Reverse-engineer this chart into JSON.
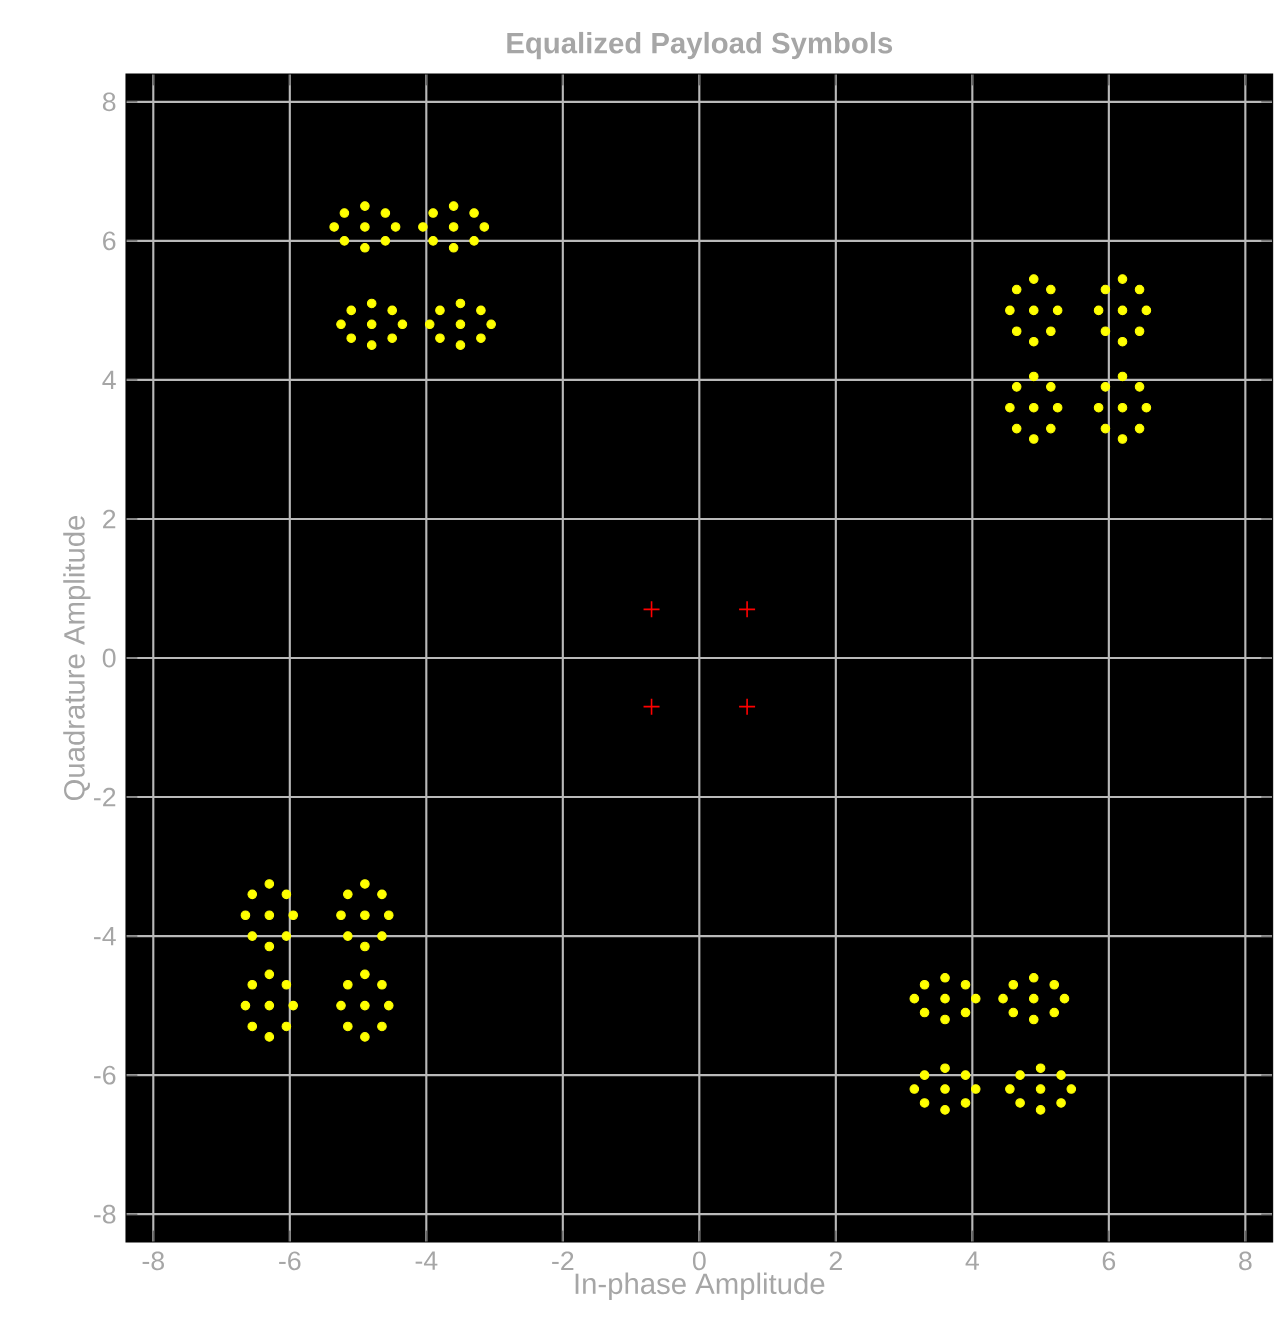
{
  "chart_data": {
    "type": "scatter",
    "title": "Equalized Payload Symbols",
    "xlabel": "In-phase Amplitude",
    "ylabel": "Quadrature Amplitude",
    "xlim": [
      -8.4,
      8.4
    ],
    "ylim": [
      -8.4,
      8.4
    ],
    "xticks": [
      -8,
      -6,
      -4,
      -2,
      0,
      2,
      4,
      6,
      8
    ],
    "yticks": [
      -8,
      -6,
      -4,
      -2,
      0,
      2,
      4,
      6,
      8
    ],
    "grid": true,
    "series": [
      {
        "color": "#ffff00",
        "marker": "circle",
        "x": [
          -4.9,
          -5.35,
          -4.45,
          -4.9,
          -4.9,
          -5.2,
          -4.6,
          -5.2,
          -4.6,
          -3.6,
          -4.05,
          -3.15,
          -3.6,
          -3.6,
          -3.9,
          -3.3,
          -3.9,
          -3.3,
          -4.8,
          -5.25,
          -4.35,
          -4.8,
          -4.8,
          -5.1,
          -4.5,
          -5.1,
          -4.5,
          -3.5,
          -3.95,
          -3.05,
          -3.5,
          -3.5,
          -3.8,
          -3.2,
          -3.8,
          -3.2,
          4.9,
          4.55,
          5.25,
          4.9,
          4.9,
          4.65,
          5.15,
          4.65,
          5.15,
          6.2,
          5.85,
          6.55,
          6.2,
          6.2,
          5.95,
          6.45,
          5.95,
          6.45,
          4.9,
          4.55,
          5.25,
          4.9,
          4.9,
          4.65,
          5.15,
          4.65,
          5.15,
          6.2,
          5.85,
          6.55,
          6.2,
          6.2,
          5.95,
          6.45,
          5.95,
          6.45,
          -6.3,
          -6.65,
          -5.95,
          -6.3,
          -6.3,
          -6.55,
          -6.05,
          -6.55,
          -6.05,
          -4.9,
          -5.25,
          -4.55,
          -4.9,
          -4.9,
          -5.15,
          -4.65,
          -5.15,
          -4.65,
          -6.3,
          -6.65,
          -5.95,
          -6.3,
          -6.3,
          -6.55,
          -6.05,
          -6.55,
          -6.05,
          -4.9,
          -5.25,
          -4.55,
          -4.9,
          -4.9,
          -5.15,
          -4.65,
          -5.15,
          -4.65,
          3.6,
          3.15,
          4.05,
          3.6,
          3.6,
          3.3,
          3.9,
          3.3,
          3.9,
          4.9,
          4.45,
          5.35,
          4.9,
          4.9,
          4.6,
          5.2,
          4.6,
          5.2,
          3.6,
          3.15,
          4.05,
          3.6,
          3.6,
          3.3,
          3.9,
          3.3,
          3.9,
          5.0,
          4.55,
          5.45,
          5.0,
          5.0,
          4.7,
          5.3,
          4.7,
          5.3
        ],
        "values": [
          6.2,
          6.2,
          6.2,
          6.5,
          5.9,
          6.4,
          6.4,
          6.0,
          6.0,
          6.2,
          6.2,
          6.2,
          6.5,
          5.9,
          6.4,
          6.4,
          6.0,
          6.0,
          4.8,
          4.8,
          4.8,
          5.1,
          4.5,
          5.0,
          5.0,
          4.6,
          4.6,
          4.8,
          4.8,
          4.8,
          5.1,
          4.5,
          5.0,
          5.0,
          4.6,
          4.6,
          5.0,
          5.0,
          5.0,
          5.45,
          4.55,
          5.3,
          5.3,
          4.7,
          4.7,
          5.0,
          5.0,
          5.0,
          5.45,
          4.55,
          5.3,
          5.3,
          4.7,
          4.7,
          3.6,
          3.6,
          3.6,
          4.05,
          3.15,
          3.9,
          3.9,
          3.3,
          3.3,
          3.6,
          3.6,
          3.6,
          4.05,
          3.15,
          3.9,
          3.9,
          3.3,
          3.3,
          -3.7,
          -3.7,
          -3.7,
          -3.25,
          -4.15,
          -3.4,
          -3.4,
          -4.0,
          -4.0,
          -3.7,
          -3.7,
          -3.7,
          -3.25,
          -4.15,
          -3.4,
          -3.4,
          -4.0,
          -4.0,
          -5.0,
          -5.0,
          -5.0,
          -4.55,
          -5.45,
          -4.7,
          -4.7,
          -5.3,
          -5.3,
          -5.0,
          -5.0,
          -5.0,
          -4.55,
          -5.45,
          -4.7,
          -4.7,
          -5.3,
          -5.3,
          -4.9,
          -4.9,
          -4.9,
          -4.6,
          -5.2,
          -4.7,
          -4.7,
          -5.1,
          -5.1,
          -4.9,
          -4.9,
          -4.9,
          -4.6,
          -5.2,
          -4.7,
          -4.7,
          -5.1,
          -5.1,
          -6.2,
          -6.2,
          -6.2,
          -5.9,
          -6.5,
          -6.0,
          -6.0,
          -6.4,
          -6.4,
          -6.2,
          -6.2,
          -6.2,
          -5.9,
          -6.5,
          -6.0,
          -6.0,
          -6.4,
          -6.4
        ]
      },
      {
        "color": "#ff0000",
        "marker": "cross",
        "x": [
          -0.7,
          0.7,
          -0.7,
          0.7
        ],
        "values": [
          0.7,
          0.7,
          -0.7,
          -0.7
        ]
      }
    ]
  }
}
